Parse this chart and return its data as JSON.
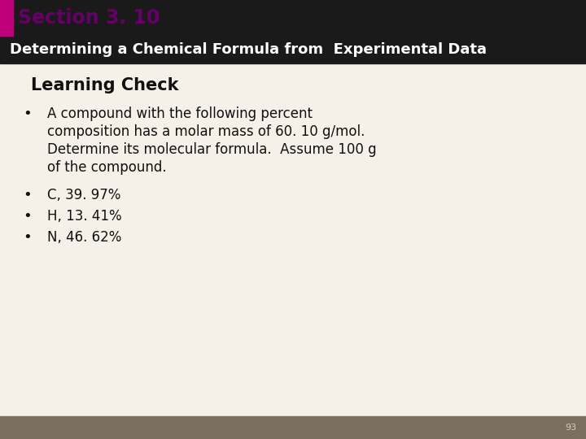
{
  "title_section": "Section 3. 10",
  "title_bar_color": "#c0007a",
  "subtitle": "Determining a Chemical Formula from  Experimental Data",
  "subtitle_bg": "#1a1a1a",
  "subtitle_color": "#ffffff",
  "learning_check_title": "Learning Check",
  "bullet1_line1": "A compound with the following percent",
  "bullet1_line2": "composition has a molar mass of 60. 10 g/mol.",
  "bullet1_line3": "Determine its molecular formula.  Assume 100 g",
  "bullet1_line4": "of the compound.",
  "bullet2": "C, 39. 97%",
  "bullet3": "H, 13. 41%",
  "bullet4": "N, 46. 62%",
  "page_number": "93",
  "bg_color": "#f5f0e8",
  "footer_color": "#7a7060",
  "section_title_color": "#660066",
  "body_text_color": "#111111",
  "learning_check_color": "#111111"
}
